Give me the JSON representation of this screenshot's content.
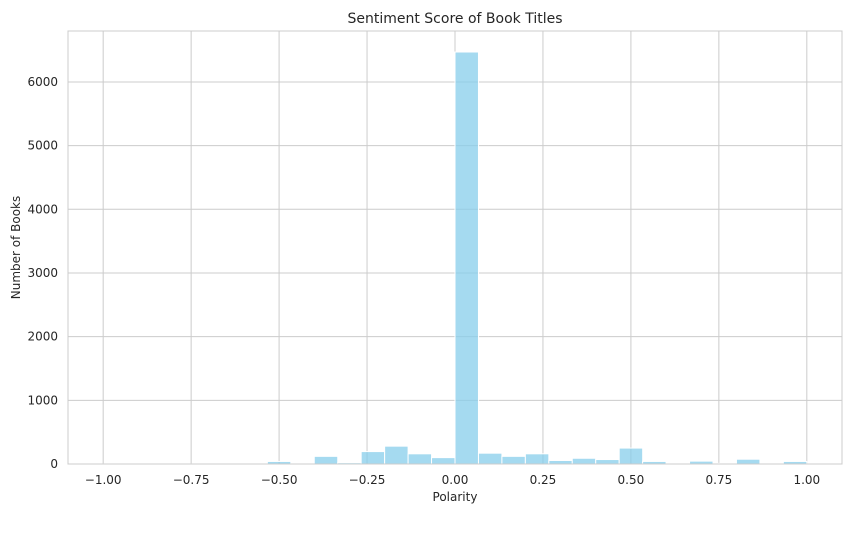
{
  "chart_data": {
    "type": "bar",
    "title": "Sentiment Score of Book Titles",
    "xlabel": "Polarity",
    "ylabel": "Number of Books",
    "xlim": [
      -1.1,
      1.1
    ],
    "ylim": [
      0,
      6800
    ],
    "grid": true,
    "bar_color": "#87ceeb",
    "bin_width": 0.0667,
    "x_ticks": [
      -1.0,
      -0.75,
      -0.5,
      -0.25,
      0.0,
      0.25,
      0.5,
      0.75,
      1.0
    ],
    "x_tick_labels": [
      "−1.00",
      "−0.75",
      "−0.50",
      "−0.25",
      "0.00",
      "0.25",
      "0.50",
      "0.75",
      "1.00"
    ],
    "y_ticks": [
      0,
      1000,
      2000,
      3000,
      4000,
      5000,
      6000
    ],
    "y_tick_labels": [
      "0",
      "1000",
      "2000",
      "3000",
      "4000",
      "5000",
      "6000"
    ],
    "bins": [
      {
        "x_start": -1.0,
        "count": 2
      },
      {
        "x_start": -0.9333,
        "count": 0
      },
      {
        "x_start": -0.8667,
        "count": 0
      },
      {
        "x_start": -0.8,
        "count": 2
      },
      {
        "x_start": -0.7333,
        "count": 0
      },
      {
        "x_start": -0.6667,
        "count": 3
      },
      {
        "x_start": -0.6,
        "count": 5
      },
      {
        "x_start": -0.5333,
        "count": 40
      },
      {
        "x_start": -0.4667,
        "count": 10
      },
      {
        "x_start": -0.4,
        "count": 120
      },
      {
        "x_start": -0.3333,
        "count": 20
      },
      {
        "x_start": -0.2667,
        "count": 195
      },
      {
        "x_start": -0.2,
        "count": 280
      },
      {
        "x_start": -0.1333,
        "count": 160
      },
      {
        "x_start": -0.0667,
        "count": 100
      },
      {
        "x_start": 0.0,
        "count": 6470
      },
      {
        "x_start": 0.0667,
        "count": 170
      },
      {
        "x_start": 0.1333,
        "count": 120
      },
      {
        "x_start": 0.2,
        "count": 160
      },
      {
        "x_start": 0.2667,
        "count": 55
      },
      {
        "x_start": 0.3333,
        "count": 90
      },
      {
        "x_start": 0.4,
        "count": 70
      },
      {
        "x_start": 0.4667,
        "count": 250
      },
      {
        "x_start": 0.5333,
        "count": 40
      },
      {
        "x_start": 0.6,
        "count": 15
      },
      {
        "x_start": 0.6667,
        "count": 45
      },
      {
        "x_start": 0.7333,
        "count": 10
      },
      {
        "x_start": 0.8,
        "count": 75
      },
      {
        "x_start": 0.8667,
        "count": 5
      },
      {
        "x_start": 0.9333,
        "count": 40
      }
    ]
  }
}
